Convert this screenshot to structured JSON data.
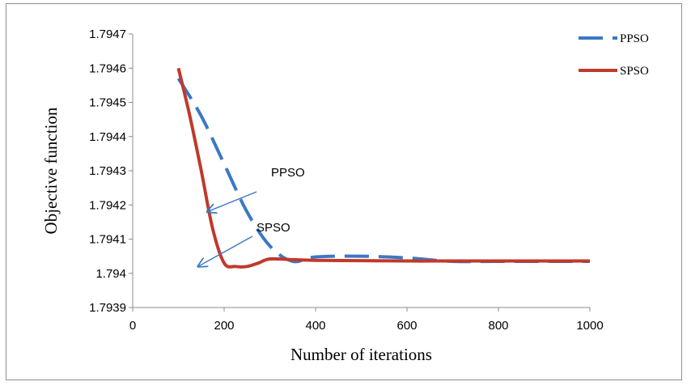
{
  "chart_data": {
    "type": "line",
    "xlabel": "Number of iterations",
    "ylabel": "Objective function",
    "xlim": [
      0,
      1000
    ],
    "ylim": [
      1.7939,
      1.7947
    ],
    "x_ticks": [
      0,
      200,
      400,
      600,
      800,
      1000
    ],
    "y_ticks": [
      1.7939,
      1.794,
      1.7941,
      1.7942,
      1.7943,
      1.7944,
      1.7945,
      1.7946,
      1.7947
    ],
    "x_tick_labels": [
      "0",
      "200",
      "400",
      "600",
      "800",
      "1000"
    ],
    "y_tick_labels": [
      "1.7939",
      "1.794",
      "1.7941",
      "1.7942",
      "1.7943",
      "1.7944",
      "1.7945",
      "1.7946",
      "1.7947"
    ],
    "grid": false,
    "legend_position": "top-right",
    "series": [
      {
        "name": "PPSO",
        "color": "#3b78c4",
        "style": "dashed",
        "x": [
          100,
          150,
          200,
          250,
          300,
          350,
          400,
          500,
          600,
          700,
          800,
          900,
          1000
        ],
        "y": [
          1.79457,
          1.79446,
          1.79432,
          1.79418,
          1.79408,
          1.794035,
          1.794048,
          1.79405,
          1.794045,
          1.794035,
          1.794035,
          1.794035,
          1.794035
        ]
      },
      {
        "name": "SPSO",
        "color": "#c0392b",
        "style": "solid",
        "x": [
          100,
          125,
          150,
          175,
          200,
          225,
          250,
          275,
          300,
          350,
          400,
          500,
          600,
          700,
          800,
          900,
          1000
        ],
        "y": [
          1.7946,
          1.79446,
          1.7943,
          1.79413,
          1.79403,
          1.79402,
          1.79402,
          1.79403,
          1.794042,
          1.79404,
          1.794038,
          1.794037,
          1.794036,
          1.794036,
          1.794036,
          1.794036,
          1.794036
        ]
      }
    ],
    "annotations": [
      {
        "text": "PPSO",
        "arrow_to": [
          163,
          1.79418
        ]
      },
      {
        "text": "SPSO",
        "arrow_to": [
          143,
          1.79402
        ]
      }
    ]
  }
}
